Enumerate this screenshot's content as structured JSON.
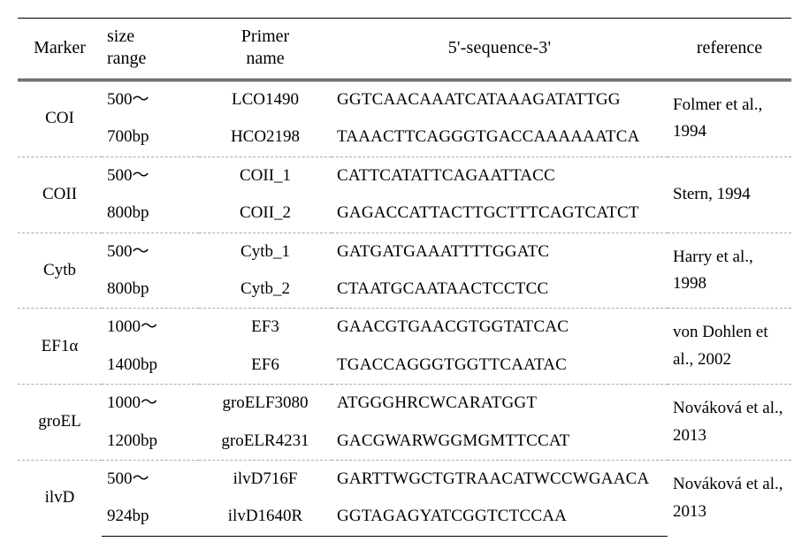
{
  "table": {
    "headers": {
      "marker": "Marker",
      "size": "size\nrange",
      "primer": "Primer\nname",
      "sequence": "5'-sequence-3'",
      "reference": "reference"
    },
    "rows": [
      {
        "marker": "COI",
        "size_lines": [
          "500～",
          "700bp"
        ],
        "primers": [
          "LCO1490",
          "HCO2198"
        ],
        "sequences": [
          "GGTCAACAAATCATAAAGATATTGG",
          "TAAACTTCAGGGTGACCAAAAAATCA"
        ],
        "reference": "Folmer et al., 1994"
      },
      {
        "marker": "COII",
        "size_lines": [
          "500～",
          "800bp"
        ],
        "primers": [
          "COII_1",
          "COII_2"
        ],
        "sequences": [
          "CATTCATATTCAGAATTACC",
          "GAGACCATTACTTGCTTTCAGTCATCT"
        ],
        "reference": "Stern, 1994"
      },
      {
        "marker": "Cytb",
        "size_lines": [
          "500～",
          "800bp"
        ],
        "primers": [
          "Cytb_1",
          "Cytb_2"
        ],
        "sequences": [
          "GATGATGAAATTTTGGATC",
          "CTAATGCAATAACTCCTCC"
        ],
        "reference": "Harry et al., 1998"
      },
      {
        "marker": "EF1α",
        "size_lines": [
          "1000～",
          "1400bp"
        ],
        "primers": [
          "EF3",
          "EF6"
        ],
        "sequences": [
          "GAACGTGAACGTGGTATCAC",
          "TGACCAGGGTGGTTCAATAC"
        ],
        "reference": "von Dohlen et al., 2002"
      },
      {
        "marker": "groEL",
        "size_lines": [
          "1000～",
          "1200bp"
        ],
        "primers": [
          "groELF3080",
          "groELR4231"
        ],
        "sequences": [
          "ATGGGHRCWCARATGGT",
          "GACGWARWGGMGMTTCCAT"
        ],
        "reference": "Nováková et al., 2013"
      },
      {
        "marker": "ilvD",
        "size_lines": [
          "500～",
          "924bp"
        ],
        "primers": [
          "ilvD716F",
          "ilvD1640R"
        ],
        "sequences": [
          "GARTTWGCTGTRAACATWCCWGAACA",
          "GGTAGAGYATCGGTCTCCAA"
        ],
        "reference": "Nováková et al., 2013"
      }
    ]
  }
}
